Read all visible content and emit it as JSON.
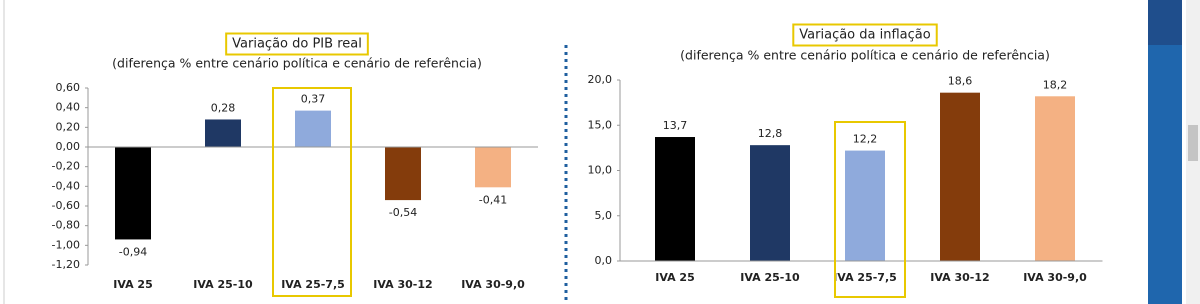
{
  "chart_data": [
    {
      "type": "bar",
      "title": "Variação do PIB real",
      "subtitle": "(diferença % entre cenário política e cenário de referência)",
      "categories": [
        "IVA 25",
        "IVA 25-10",
        "IVA 25-7,5",
        "IVA 30-12",
        "IVA 30-9,0"
      ],
      "values": [
        -0.94,
        0.28,
        0.37,
        -0.54,
        -0.41
      ],
      "value_labels": [
        "-0,94",
        "0,28",
        "0,37",
        "-0,54",
        "-0,41"
      ],
      "colors": [
        "#000000",
        "#1f3864",
        "#8faadc",
        "#843c0c",
        "#f4b183"
      ],
      "ylim": [
        -1.2,
        0.6
      ],
      "yticks": [
        {
          "value": 0.6,
          "label": "0,60"
        },
        {
          "value": 0.4,
          "label": "0,40"
        },
        {
          "value": 0.2,
          "label": "0,20"
        },
        {
          "value": 0,
          "label": "0,00"
        },
        {
          "value": -0.2,
          "label": "-0,20"
        },
        {
          "value": -0.4,
          "label": "-0,40"
        },
        {
          "value": -0.6,
          "label": "-0,60"
        },
        {
          "value": -0.8,
          "label": "-0,80"
        },
        {
          "value": -1.0,
          "label": "-1,00"
        },
        {
          "value": -1.2,
          "label": "-1,20"
        }
      ]
    },
    {
      "type": "bar",
      "title": "Variação da inflação",
      "subtitle": "(diferença % entre cenário política e cenário de referência)",
      "categories": [
        "IVA 25",
        "IVA 25-10",
        "IVA 25-7,5",
        "IVA 30-12",
        "IVA 30-9,0"
      ],
      "values": [
        13.7,
        12.8,
        12.2,
        18.6,
        18.2
      ],
      "value_labels": [
        "13,7",
        "12,8",
        "12,2",
        "18,6",
        "18,2"
      ],
      "colors": [
        "#000000",
        "#1f3864",
        "#8faadc",
        "#843c0c",
        "#f4b183"
      ],
      "ylim": [
        0,
        20
      ],
      "yticks": [
        {
          "value": 20,
          "label": "20,0"
        },
        {
          "value": 15,
          "label": "15,0"
        },
        {
          "value": 10,
          "label": "10,0"
        },
        {
          "value": 5,
          "label": "5,0"
        },
        {
          "value": 0,
          "label": "0,0"
        }
      ]
    }
  ]
}
